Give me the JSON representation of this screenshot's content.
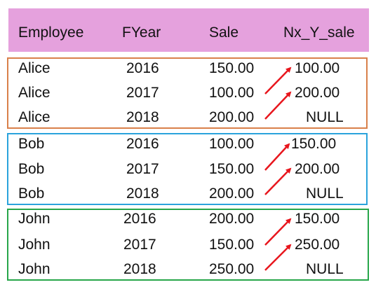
{
  "headers": {
    "employee": "Employee",
    "fyear": "FYear",
    "sale": "Sale",
    "next": "Nx_Y_sale"
  },
  "colors": {
    "header_bg": "#e5a1dd",
    "arrow": "#e8161d",
    "group_alice": "#d9804a",
    "group_bob": "#2aa3dc",
    "group_john": "#27a64a"
  },
  "groups": [
    {
      "employee": "Alice",
      "color": "#d9804a",
      "rows": [
        {
          "employee": "Alice",
          "fyear": "2016",
          "sale": "150.00",
          "next": "100.00"
        },
        {
          "employee": "Alice",
          "fyear": "2017",
          "sale": "100.00",
          "next": "200.00"
        },
        {
          "employee": "Alice",
          "fyear": "2018",
          "sale": "200.00",
          "next": "NULL"
        }
      ]
    },
    {
      "employee": "Bob",
      "color": "#2aa3dc",
      "rows": [
        {
          "employee": "Bob",
          "fyear": "2016",
          "sale": "100.00",
          "next": "150.00"
        },
        {
          "employee": "Bob",
          "fyear": "2017",
          "sale": "150.00",
          "next": "200.00"
        },
        {
          "employee": "Bob",
          "fyear": "2018",
          "sale": "200.00",
          "next": "NULL"
        }
      ]
    },
    {
      "employee": "John",
      "color": "#27a64a",
      "rows": [
        {
          "employee": "John",
          "fyear": "2016",
          "sale": "200.00",
          "next": "150.00"
        },
        {
          "employee": "John",
          "fyear": "2017",
          "sale": "150.00",
          "next": "250.00"
        },
        {
          "employee": "John",
          "fyear": "2018",
          "sale": "250.00",
          "next": "NULL"
        }
      ]
    }
  ]
}
